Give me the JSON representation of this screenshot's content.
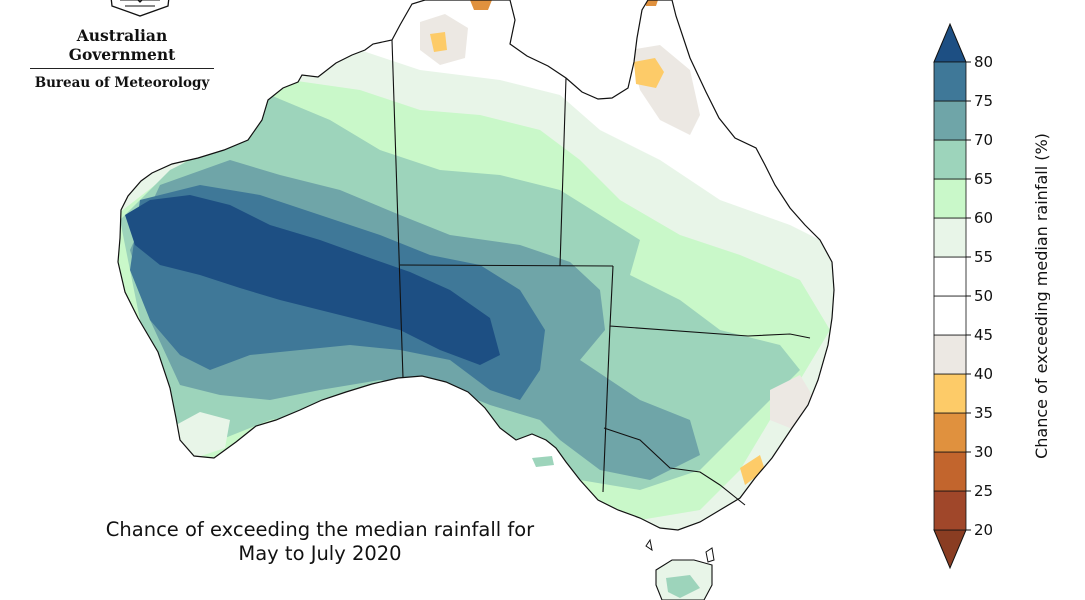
{
  "branding": {
    "title": "Australian Government",
    "subtitle": "Bureau of Meteorology",
    "crest_icon": "coat-of-arms-icon"
  },
  "caption": {
    "line1": "Chance of exceeding the median rainfall for",
    "line2": "May to July 2020"
  },
  "legend": {
    "label": "Chance of exceeding median rainfall (%)",
    "ticks": [
      20,
      25,
      30,
      35,
      40,
      45,
      50,
      55,
      60,
      65,
      70,
      75,
      80
    ],
    "bins": [
      {
        "from": 20,
        "to": 25,
        "color": "#a0472a"
      },
      {
        "from": 25,
        "to": 30,
        "color": "#c2652d"
      },
      {
        "from": 30,
        "to": 35,
        "color": "#e0913e"
      },
      {
        "from": 35,
        "to": 40,
        "color": "#fdcb68"
      },
      {
        "from": 40,
        "to": 45,
        "color": "#ece8e3"
      },
      {
        "from": 45,
        "to": 50,
        "color": "#ffffff"
      },
      {
        "from": 50,
        "to": 55,
        "color": "#ffffff"
      },
      {
        "from": 55,
        "to": 60,
        "color": "#e8f5e8"
      },
      {
        "from": 60,
        "to": 65,
        "color": "#c9f8c9"
      },
      {
        "from": 65,
        "to": 70,
        "color": "#9dd4bb"
      },
      {
        "from": 70,
        "to": 75,
        "color": "#6fa5a8"
      },
      {
        "from": 75,
        "to": 80,
        "color": "#3f7898"
      }
    ],
    "below_color": "#8a3d22",
    "above_color": "#1d4f83"
  },
  "map": {
    "colors": {
      "c80": "#1d4f83",
      "c75": "#3f7898",
      "c70": "#6fa5a8",
      "c65": "#9dd4bb",
      "c60": "#c9f8c9",
      "c55": "#e8f5e8",
      "c50": "#ffffff",
      "c45": "#ece8e3",
      "c40": "#fdcb68",
      "c35": "#e0913e",
      "border": "#111111"
    }
  }
}
